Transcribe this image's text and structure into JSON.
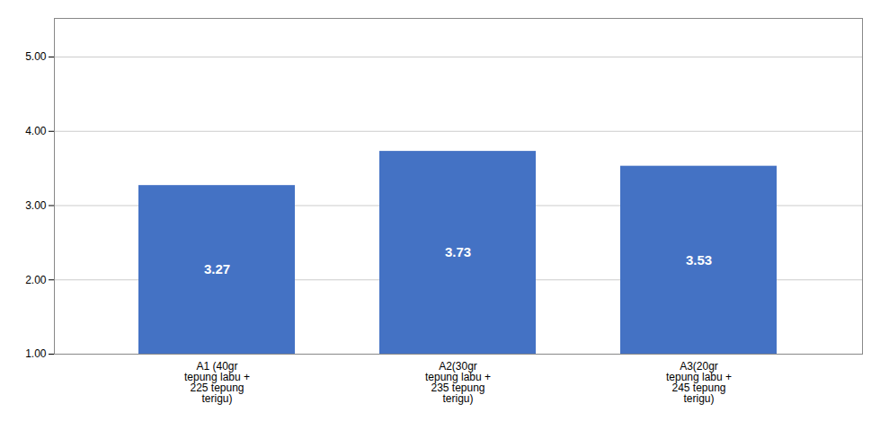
{
  "chart_data": {
    "type": "bar",
    "categories": [
      "A1 (40gr\ntepung labu +\n225 tepung\nterigu)",
      "A2(30gr\ntepung labu +\n235 tepung\nterigu)",
      "A3(20gr\ntepung labu +\n245 tepung\nterigu)"
    ],
    "values": [
      3.27,
      3.73,
      3.53
    ],
    "color": "#4472C4",
    "ylim": [
      1.0,
      5.52
    ],
    "yticks": [
      {
        "value": 1.0,
        "label": "1.00"
      },
      {
        "value": 2.0,
        "label": "2.00"
      },
      {
        "value": 3.0,
        "label": "3.00"
      },
      {
        "value": 4.0,
        "label": "4.00"
      },
      {
        "value": 5.0,
        "label": "5.00"
      }
    ],
    "grid": true,
    "data_labels": true
  }
}
